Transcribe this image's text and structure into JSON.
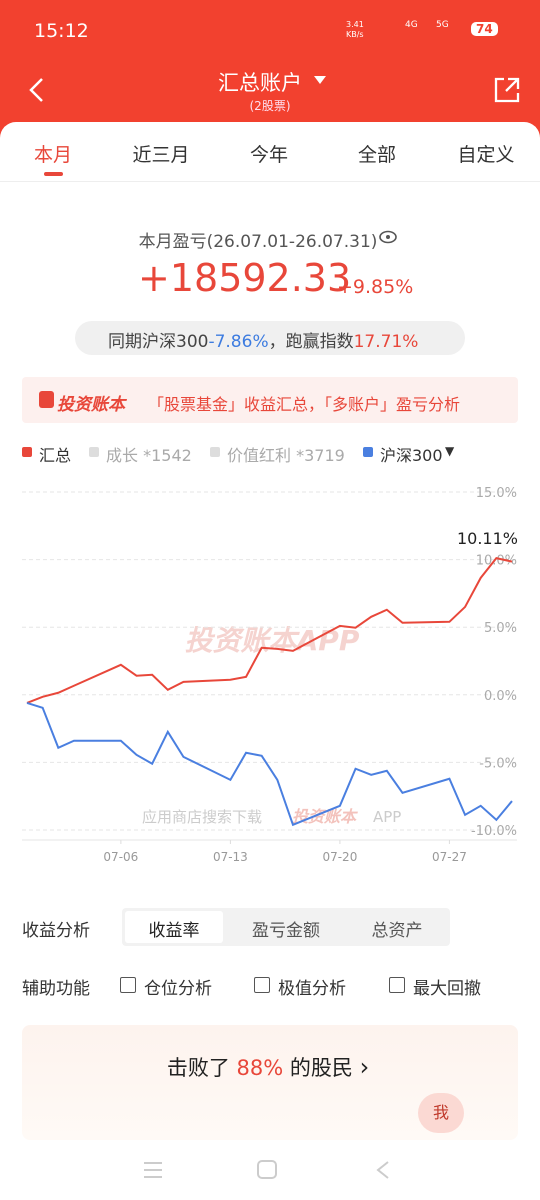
{
  "status_bar": {
    "time": "15:12",
    "speed": "3.41 KB/s",
    "net1": "4G",
    "net2": "5G",
    "battery": "74"
  },
  "header": {
    "title": "汇总账户",
    "subtitle": "(2股票)"
  },
  "tabs": [
    "本月",
    "近三月",
    "今年",
    "全部",
    "自定义"
  ],
  "summary": {
    "label": "本月盈亏(26.07.01-26.07.31)",
    "amount": "+18592.33",
    "percent": "+9.85%"
  },
  "compare": {
    "label": "同期沪深300",
    "index_change": "-7.86%",
    "beat_label": "，跑赢指数",
    "beat_value": "17.71%"
  },
  "banner": {
    "brand": "投资账本",
    "text": "「股票基金」收益汇总，「多账户」盈亏分析"
  },
  "chart_data": {
    "type": "line",
    "annotation": "10.11%",
    "legend_inactive": [
      "成长 *1542",
      "价值红利 *3719"
    ],
    "legend_arrow": "▼",
    "watermark": "投资账本APP",
    "footer_text": "应用商店搜索下载",
    "footer_brand": "投资账本",
    "footer_app": "APP",
    "x": [
      0,
      1,
      2,
      3,
      6,
      7,
      8,
      9,
      10,
      13,
      14,
      15,
      16,
      17,
      20,
      21,
      22,
      23,
      24,
      27,
      28,
      29,
      30,
      31
    ],
    "xlim": [
      0,
      31
    ],
    "xticks": [
      {
        "value": 6,
        "label": "07-06"
      },
      {
        "value": 13,
        "label": "07-13"
      },
      {
        "value": 20,
        "label": "07-20"
      },
      {
        "value": 27,
        "label": "07-27"
      }
    ],
    "ylim": [
      -10,
      15
    ],
    "yticks": [
      {
        "value": 15,
        "label": "15.0%"
      },
      {
        "value": 10,
        "label": "10.0%"
      },
      {
        "value": 5,
        "label": "5.0%"
      },
      {
        "value": 0,
        "label": "0.0%"
      },
      {
        "value": -5,
        "label": "-5.0%"
      },
      {
        "value": -10,
        "label": "-10.0%"
      }
    ],
    "grid": true,
    "series": [
      {
        "name": "汇总",
        "color": "#e8473a",
        "values": [
          -0.6,
          -0.15,
          0.15,
          0.67,
          2.22,
          1.41,
          1.48,
          0.37,
          0.96,
          1.11,
          1.33,
          3.48,
          3.4,
          3.25,
          5.1,
          4.96,
          5.77,
          6.29,
          5.33,
          5.4,
          6.5,
          8.65,
          10.11,
          9.85
        ]
      },
      {
        "name": "沪深300",
        "color": "#4a7fe0",
        "values": [
          -0.6,
          -0.96,
          -3.92,
          -3.4,
          -3.4,
          -4.44,
          -5.1,
          -2.74,
          -4.59,
          -6.29,
          -4.29,
          -4.51,
          -6.29,
          -9.62,
          -8.21,
          -5.47,
          -5.92,
          -5.62,
          -7.25,
          -6.21,
          -8.88,
          -8.21,
          -9.25,
          -7.86
        ]
      }
    ]
  },
  "analysis": {
    "label": "收益分析",
    "options": [
      "收益率",
      "盈亏金额",
      "总资产"
    ]
  },
  "aux": {
    "label": "辅助功能",
    "options": [
      "仓位分析",
      "极值分析",
      "最大回撤"
    ]
  },
  "rank": {
    "prefix": "击败了",
    "value": "88%",
    "suffix": "的股民",
    "arrow": "›"
  },
  "me": "我"
}
